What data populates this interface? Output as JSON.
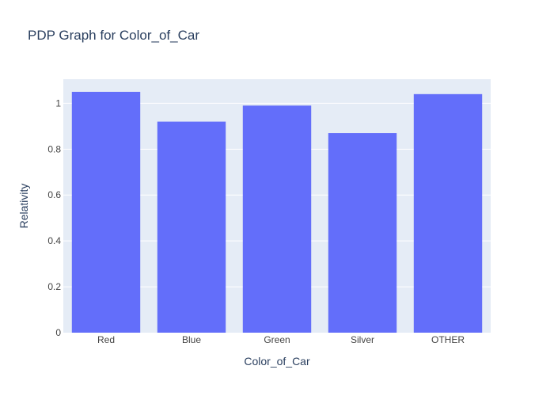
{
  "chart_data": {
    "type": "bar",
    "title": "PDP Graph for Color_of_Car",
    "xlabel": "Color_of_Car",
    "ylabel": "Relativity",
    "categories": [
      "Red",
      "Blue",
      "Green",
      "Silver",
      "OTHER"
    ],
    "values": [
      1.05,
      0.92,
      0.99,
      0.87,
      1.04
    ],
    "ylim": [
      0,
      1.105
    ],
    "yticks": [
      0,
      0.2,
      0.4,
      0.6,
      0.8,
      1
    ],
    "ytick_labels": [
      "0",
      "0.2",
      "0.4",
      "0.6",
      "0.8",
      "1"
    ],
    "grid": true,
    "legend": "none",
    "colors": {
      "bar": "#636efa",
      "plot_background": "#e5ecf6",
      "gridline": "#ffffff",
      "text": "#2a3f5f",
      "tick_text": "#444444"
    }
  }
}
